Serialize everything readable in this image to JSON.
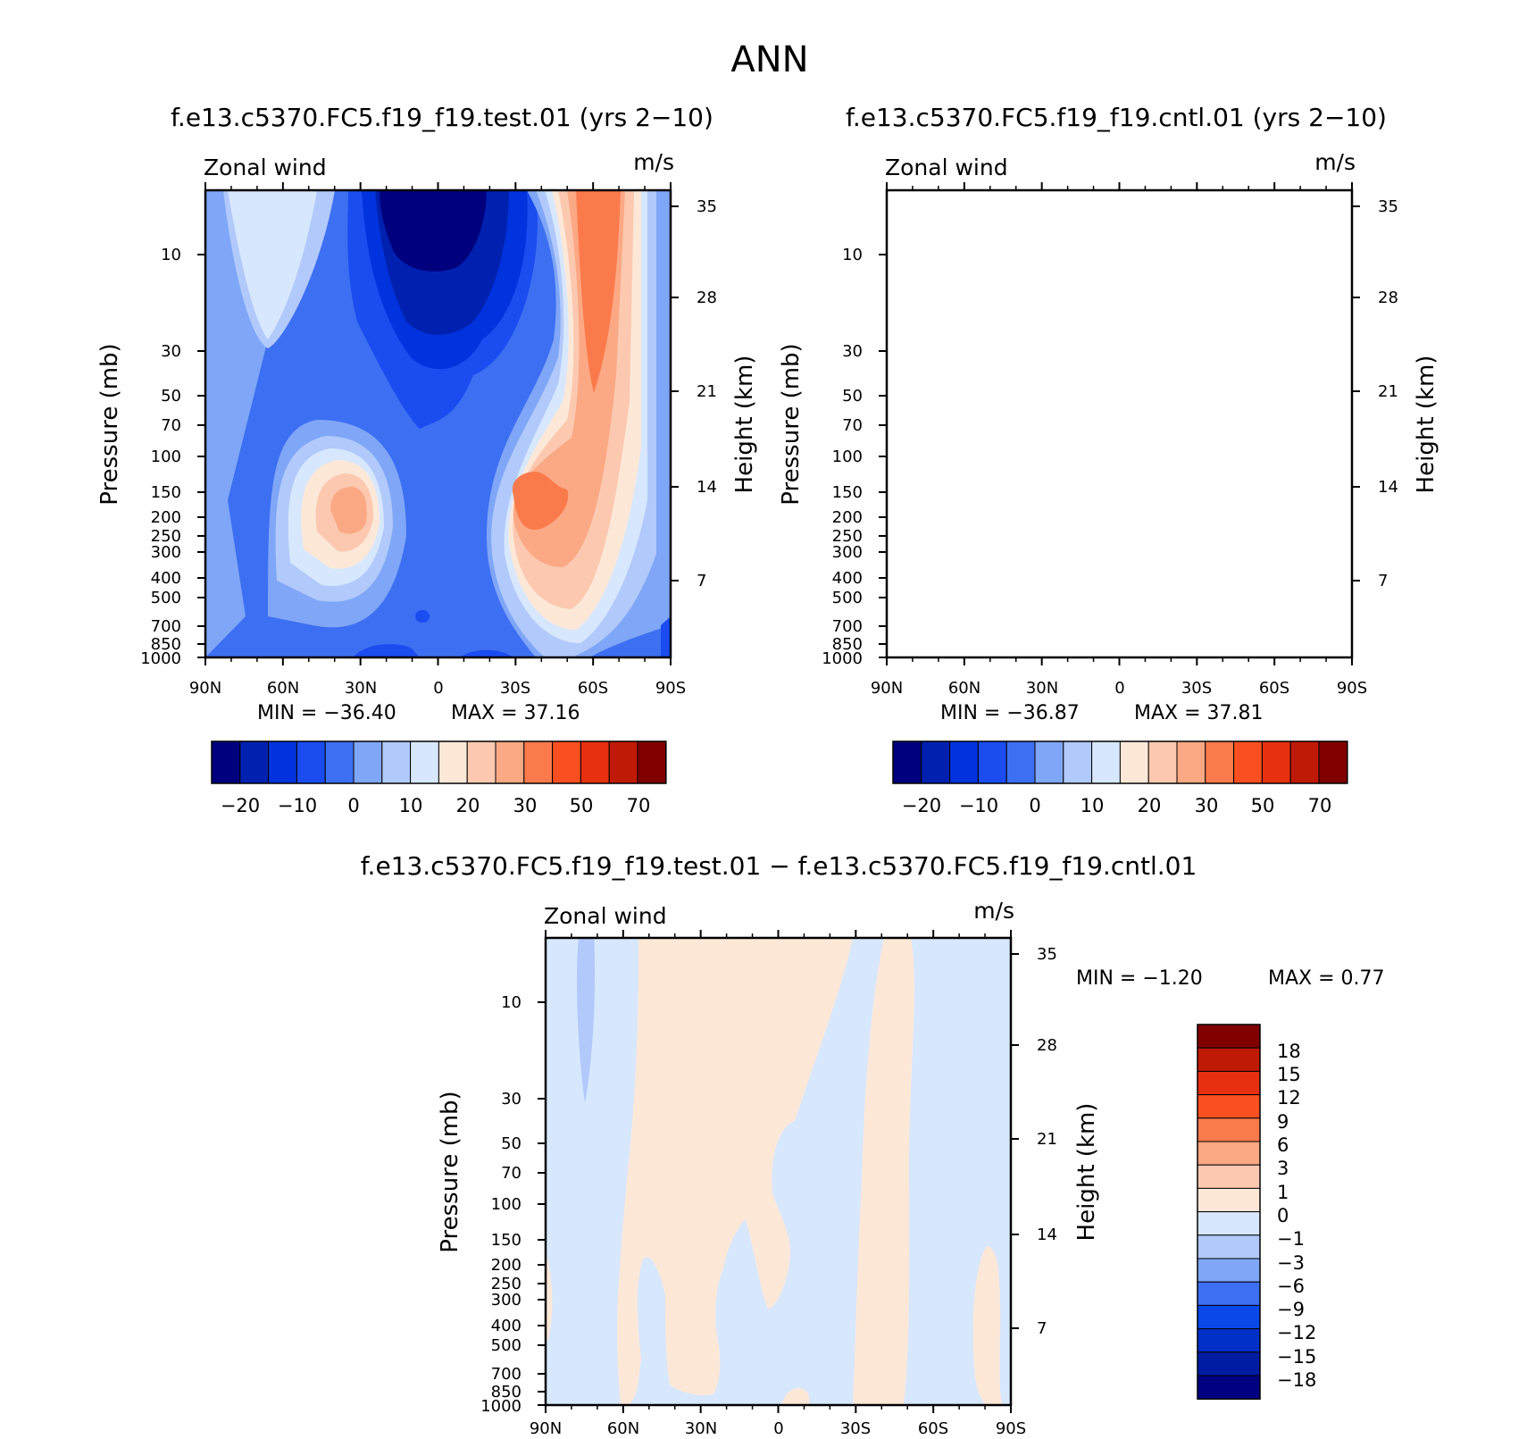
{
  "page": {
    "season": "ANN"
  },
  "colors": {
    "test_cntl_palette": [
      "#00007f",
      "#0021b0",
      "#0033dd",
      "#1a4cf0",
      "#3d6ff2",
      "#7fa6f7",
      "#b1c9fb",
      "#d7e7fd",
      "#fde8d8",
      "#fcc8b0",
      "#fba884",
      "#fb7a4c",
      "#fa4f20",
      "#e63010",
      "#bf1a06",
      "#800000"
    ],
    "diff_palette": [
      "#000080",
      "#001ca3",
      "#0030c8",
      "#0a48ea",
      "#3d6ff2",
      "#7fa6f7",
      "#b1c9fb",
      "#d7e7fd",
      "#fde8d8",
      "#fcc8b0",
      "#fba884",
      "#fb7a4c",
      "#fa4f20",
      "#e63010",
      "#bf1a06",
      "#800000"
    ]
  },
  "chart_data": [
    {
      "type": "contour",
      "id": "test",
      "title": "f.e13.c5370.FC5.f19_f19.test.01 (yrs 2−10)",
      "left_label": "Zonal wind",
      "right_label": "m/s",
      "ylabel": "Pressure (mb)",
      "y2label": "Height (km)",
      "x_ticks": [
        "90N",
        "60N",
        "30N",
        "0",
        "30S",
        "60S",
        "90S"
      ],
      "y_ticks": [
        "10",
        "30",
        "50",
        "70",
        "100",
        "150",
        "200",
        "250",
        "300",
        "400",
        "500",
        "700",
        "850",
        "1000"
      ],
      "y2_ticks": [
        "35",
        "28",
        "21",
        "14",
        "7"
      ],
      "min_text": "MIN = −36.40",
      "max_text": "MAX = 37.16",
      "min": -36.4,
      "max": 37.16,
      "colorbar_labels": [
        "−20",
        "−10",
        "0",
        "10",
        "20",
        "30",
        "50",
        "70"
      ]
    },
    {
      "type": "contour",
      "id": "cntl",
      "title": "f.e13.c5370.FC5.f19_f19.cntl.01 (yrs 2−10)",
      "left_label": "Zonal wind",
      "right_label": "m/s",
      "ylabel": "Pressure (mb)",
      "y2label": "Height (km)",
      "x_ticks": [
        "90N",
        "60N",
        "30N",
        "0",
        "30S",
        "60S",
        "90S"
      ],
      "y_ticks": [
        "10",
        "30",
        "50",
        "70",
        "100",
        "150",
        "200",
        "250",
        "300",
        "400",
        "500",
        "700",
        "850",
        "1000"
      ],
      "y2_ticks": [
        "35",
        "28",
        "21",
        "14",
        "7"
      ],
      "min_text": "MIN = −36.87",
      "max_text": "MAX = 37.81",
      "min": -36.87,
      "max": 37.81,
      "colorbar_labels": [
        "−20",
        "−10",
        "0",
        "10",
        "20",
        "30",
        "50",
        "70"
      ]
    },
    {
      "type": "contour",
      "id": "diff",
      "title": "f.e13.c5370.FC5.f19_f19.test.01 − f.e13.c5370.FC5.f19_f19.cntl.01",
      "left_label": "Zonal wind",
      "right_label": "m/s",
      "ylabel": "Pressure (mb)",
      "y2label": "Height (km)",
      "x_ticks": [
        "90N",
        "60N",
        "30N",
        "0",
        "30S",
        "60S",
        "90S"
      ],
      "y_ticks": [
        "10",
        "30",
        "50",
        "70",
        "100",
        "150",
        "200",
        "250",
        "300",
        "400",
        "500",
        "700",
        "850",
        "1000"
      ],
      "y2_ticks": [
        "35",
        "28",
        "21",
        "14",
        "7"
      ],
      "min_text": "MIN = −1.20",
      "max_text": "MAX = 0.77",
      "min": -1.2,
      "max": 0.77,
      "colorbar_labels": [
        "18",
        "15",
        "12",
        "9",
        "6",
        "3",
        "1",
        "0",
        "−1",
        "−3",
        "−6",
        "−9",
        "−12",
        "−15",
        "−18"
      ]
    }
  ]
}
